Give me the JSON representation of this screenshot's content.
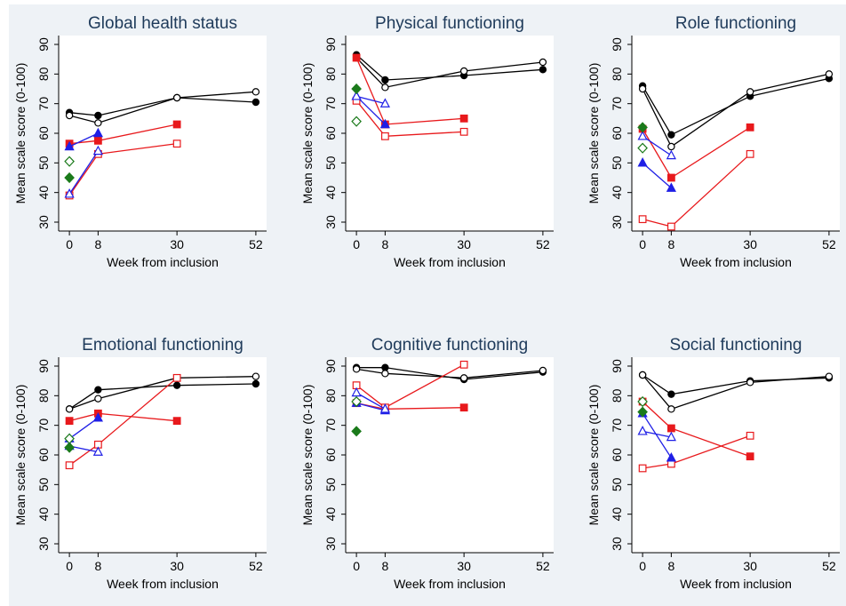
{
  "chart_data": [
    {
      "type": "line",
      "title": "Global health status",
      "xlabel": "Week from inclusion",
      "ylabel": "Mean scale score (0-100)",
      "x_ticks": [
        0,
        8,
        30,
        52
      ],
      "y_ticks": [
        30,
        40,
        50,
        60,
        70,
        80,
        90
      ],
      "ylim": [
        27,
        93
      ],
      "grid": false,
      "series": [
        {
          "marker": "circle-filled",
          "color": "#000000",
          "x": [
            0,
            8,
            30,
            52
          ],
          "y": [
            67,
            66,
            72,
            70.5
          ]
        },
        {
          "marker": "circle-open",
          "color": "#000000",
          "x": [
            0,
            8,
            30,
            52
          ],
          "y": [
            66,
            63.5,
            72,
            74
          ]
        },
        {
          "marker": "square-filled",
          "color": "#e8191c",
          "x": [
            0,
            8,
            30
          ],
          "y": [
            56.5,
            57.5,
            63
          ]
        },
        {
          "marker": "square-open",
          "color": "#e8191c",
          "x": [
            0,
            8,
            30
          ],
          "y": [
            39,
            53,
            56.5
          ]
        },
        {
          "marker": "triangle-filled",
          "color": "#1f1fe6",
          "x": [
            0,
            8
          ],
          "y": [
            55.5,
            60
          ]
        },
        {
          "marker": "triangle-open",
          "color": "#1f1fe6",
          "x": [
            0,
            8
          ],
          "y": [
            39.5,
            54
          ]
        },
        {
          "marker": "diamond-filled",
          "color": "#1b7a1b",
          "x": [
            0
          ],
          "y": [
            45
          ]
        },
        {
          "marker": "diamond-open",
          "color": "#1b7a1b",
          "x": [
            0
          ],
          "y": [
            50.5
          ]
        }
      ]
    },
    {
      "type": "line",
      "title": "Physical functioning",
      "xlabel": "Week from inclusion",
      "ylabel": "Mean scale score (0-100)",
      "x_ticks": [
        0,
        8,
        30,
        52
      ],
      "y_ticks": [
        30,
        40,
        50,
        60,
        70,
        80,
        90
      ],
      "ylim": [
        27,
        93
      ],
      "grid": false,
      "series": [
        {
          "marker": "circle-filled",
          "color": "#000000",
          "x": [
            0,
            8,
            30,
            52
          ],
          "y": [
            86.5,
            78,
            79.5,
            81.5
          ]
        },
        {
          "marker": "circle-open",
          "color": "#000000",
          "x": [
            0,
            8,
            30,
            52
          ],
          "y": [
            85.5,
            75.5,
            81,
            84
          ]
        },
        {
          "marker": "square-filled",
          "color": "#e8191c",
          "x": [
            0,
            8,
            30
          ],
          "y": [
            85.5,
            63,
            65
          ]
        },
        {
          "marker": "square-open",
          "color": "#e8191c",
          "x": [
            0,
            8,
            30
          ],
          "y": [
            71,
            59,
            60.5
          ]
        },
        {
          "marker": "triangle-filled",
          "color": "#1f1fe6",
          "x": [
            0,
            8
          ],
          "y": [
            72.5,
            63
          ]
        },
        {
          "marker": "triangle-open",
          "color": "#1f1fe6",
          "x": [
            0,
            8
          ],
          "y": [
            72.5,
            70
          ]
        },
        {
          "marker": "diamond-filled",
          "color": "#1b7a1b",
          "x": [
            0
          ],
          "y": [
            75
          ]
        },
        {
          "marker": "diamond-open",
          "color": "#1b7a1b",
          "x": [
            0
          ],
          "y": [
            64
          ]
        }
      ]
    },
    {
      "type": "line",
      "title": "Role functioning",
      "xlabel": "Week from inclusion",
      "ylabel": "Mean scale score (0-100)",
      "x_ticks": [
        0,
        8,
        30,
        52
      ],
      "y_ticks": [
        30,
        40,
        50,
        60,
        70,
        80,
        90
      ],
      "ylim": [
        27,
        93
      ],
      "grid": false,
      "series": [
        {
          "marker": "circle-filled",
          "color": "#000000",
          "x": [
            0,
            8,
            30,
            52
          ],
          "y": [
            76,
            59.5,
            72.5,
            78.5
          ]
        },
        {
          "marker": "circle-open",
          "color": "#000000",
          "x": [
            0,
            8,
            30,
            52
          ],
          "y": [
            75,
            55.5,
            74,
            80
          ]
        },
        {
          "marker": "square-filled",
          "color": "#e8191c",
          "x": [
            0,
            8,
            30
          ],
          "y": [
            61.5,
            45,
            62
          ]
        },
        {
          "marker": "square-open",
          "color": "#e8191c",
          "x": [
            0,
            8,
            30
          ],
          "y": [
            31,
            28.5,
            53
          ]
        },
        {
          "marker": "triangle-filled",
          "color": "#1f1fe6",
          "x": [
            0,
            8
          ],
          "y": [
            50,
            41.5
          ]
        },
        {
          "marker": "triangle-open",
          "color": "#1f1fe6",
          "x": [
            0,
            8
          ],
          "y": [
            59,
            52.5
          ]
        },
        {
          "marker": "diamond-filled",
          "color": "#1b7a1b",
          "x": [
            0
          ],
          "y": [
            62
          ]
        },
        {
          "marker": "diamond-open",
          "color": "#1b7a1b",
          "x": [
            0
          ],
          "y": [
            55
          ]
        }
      ]
    },
    {
      "type": "line",
      "title": "Emotional functioning",
      "xlabel": "Week from inclusion",
      "ylabel": "Mean scale score (0-100)",
      "x_ticks": [
        0,
        8,
        30,
        52
      ],
      "y_ticks": [
        30,
        40,
        50,
        60,
        70,
        80,
        90
      ],
      "ylim": [
        27,
        93
      ],
      "grid": false,
      "series": [
        {
          "marker": "circle-filled",
          "color": "#000000",
          "x": [
            0,
            8,
            30,
            52
          ],
          "y": [
            75.5,
            82,
            83.5,
            84
          ]
        },
        {
          "marker": "circle-open",
          "color": "#000000",
          "x": [
            0,
            8,
            30,
            52
          ],
          "y": [
            75.5,
            79,
            86,
            86.5
          ]
        },
        {
          "marker": "square-filled",
          "color": "#e8191c",
          "x": [
            0,
            8,
            30
          ],
          "y": [
            71.5,
            74,
            71.5
          ]
        },
        {
          "marker": "square-open",
          "color": "#e8191c",
          "x": [
            0,
            8,
            30
          ],
          "y": [
            56.5,
            63.5,
            86
          ]
        },
        {
          "marker": "triangle-filled",
          "color": "#1f1fe6",
          "x": [
            0,
            8
          ],
          "y": [
            65.5,
            72.5
          ]
        },
        {
          "marker": "triangle-open",
          "color": "#1f1fe6",
          "x": [
            0,
            8
          ],
          "y": [
            63,
            61
          ]
        },
        {
          "marker": "diamond-filled",
          "color": "#1b7a1b",
          "x": [
            0
          ],
          "y": [
            62.5
          ]
        },
        {
          "marker": "diamond-open",
          "color": "#1b7a1b",
          "x": [
            0
          ],
          "y": [
            65.5
          ]
        }
      ]
    },
    {
      "type": "line",
      "title": "Cognitive functioning",
      "xlabel": "Week from inclusion",
      "ylabel": "Mean scale score (0-100)",
      "x_ticks": [
        0,
        8,
        30,
        52
      ],
      "y_ticks": [
        30,
        40,
        50,
        60,
        70,
        80,
        90
      ],
      "ylim": [
        27,
        93
      ],
      "grid": false,
      "series": [
        {
          "marker": "circle-filled",
          "color": "#000000",
          "x": [
            0,
            8,
            30,
            52
          ],
          "y": [
            89.5,
            89.5,
            85.5,
            88
          ]
        },
        {
          "marker": "circle-open",
          "color": "#000000",
          "x": [
            0,
            8,
            30,
            52
          ],
          "y": [
            89,
            87.5,
            86,
            88.5
          ]
        },
        {
          "marker": "square-filled",
          "color": "#e8191c",
          "x": [
            0,
            8,
            30
          ],
          "y": [
            77.5,
            75.5,
            76
          ]
        },
        {
          "marker": "square-open",
          "color": "#e8191c",
          "x": [
            0,
            8,
            30
          ],
          "y": [
            83.5,
            76,
            90.5
          ]
        },
        {
          "marker": "triangle-filled",
          "color": "#1f1fe6",
          "x": [
            0,
            8
          ],
          "y": [
            77.5,
            75
          ]
        },
        {
          "marker": "triangle-open",
          "color": "#1f1fe6",
          "x": [
            0,
            8
          ],
          "y": [
            81,
            75.5
          ]
        },
        {
          "marker": "diamond-filled",
          "color": "#1b7a1b",
          "x": [
            0
          ],
          "y": [
            68
          ]
        },
        {
          "marker": "diamond-open",
          "color": "#1b7a1b",
          "x": [
            0
          ],
          "y": [
            78
          ]
        }
      ]
    },
    {
      "type": "line",
      "title": "Social functioning",
      "xlabel": "Week from inclusion",
      "ylabel": "Mean scale score (0-100)",
      "x_ticks": [
        0,
        8,
        30,
        52
      ],
      "y_ticks": [
        30,
        40,
        50,
        60,
        70,
        80,
        90
      ],
      "ylim": [
        27,
        93
      ],
      "grid": false,
      "series": [
        {
          "marker": "circle-filled",
          "color": "#000000",
          "x": [
            0,
            8,
            30,
            52
          ],
          "y": [
            87,
            80.5,
            85,
            86
          ]
        },
        {
          "marker": "circle-open",
          "color": "#000000",
          "x": [
            0,
            8,
            30,
            52
          ],
          "y": [
            87,
            75.5,
            84.5,
            86.5
          ]
        },
        {
          "marker": "square-filled",
          "color": "#e8191c",
          "x": [
            0,
            8,
            30
          ],
          "y": [
            78,
            69,
            59.5
          ]
        },
        {
          "marker": "square-open",
          "color": "#e8191c",
          "x": [
            0,
            8,
            30
          ],
          "y": [
            55.5,
            57,
            66.5
          ]
        },
        {
          "marker": "triangle-filled",
          "color": "#1f1fe6",
          "x": [
            0,
            8
          ],
          "y": [
            74,
            59
          ]
        },
        {
          "marker": "triangle-open",
          "color": "#1f1fe6",
          "x": [
            0,
            8
          ],
          "y": [
            68,
            66
          ]
        },
        {
          "marker": "diamond-filled",
          "color": "#1b7a1b",
          "x": [
            0
          ],
          "y": [
            74.5
          ]
        },
        {
          "marker": "diamond-open",
          "color": "#1b7a1b",
          "x": [
            0
          ],
          "y": [
            78
          ]
        }
      ]
    }
  ]
}
